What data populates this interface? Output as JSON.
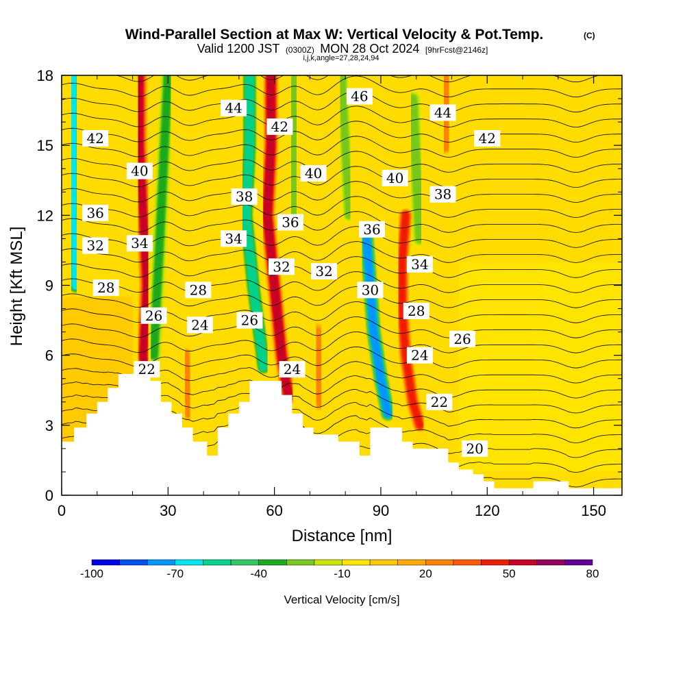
{
  "chart_data": {
    "type": "heatmap",
    "title": "Wind-Parallel Section at Max W: Vertical Velocity & Pot.Temp.",
    "title_mark": "(C)",
    "subtitle": {
      "valid": "Valid 1200 JST",
      "utc": "(0300Z)",
      "date": "MON 28 Oct 2024",
      "fcst": "[9hrFcst@2146z]",
      "ijk": "i,j,k,angle=27,28,24,94"
    },
    "xlabel": "Distance [nm]",
    "ylabel": "Height [Kft MSL]",
    "xlim": [
      0,
      158
    ],
    "ylim": [
      0,
      18
    ],
    "xticks": [
      "0",
      "30",
      "60",
      "90",
      "120",
      "150"
    ],
    "yticks": [
      "0",
      "3",
      "6",
      "9",
      "12",
      "15",
      "18"
    ],
    "xtick_values": [
      0,
      30,
      60,
      90,
      120,
      150
    ],
    "ytick_values": [
      0,
      3,
      6,
      9,
      12,
      15,
      18
    ],
    "colorbar": {
      "label": "Vertical Velocity [cm/s]",
      "tick_labels": [
        "-100",
        "-70",
        "-40",
        "-10",
        "20",
        "50",
        "80"
      ],
      "tick_values": [
        -100,
        -70,
        -40,
        -10,
        20,
        50,
        80
      ],
      "levels": [
        -100,
        -90,
        -80,
        -70,
        -60,
        -50,
        -40,
        -30,
        -20,
        -10,
        0,
        10,
        20,
        30,
        40,
        50,
        60,
        70,
        80
      ],
      "colors": [
        "#0000e6",
        "#0050f0",
        "#0096ff",
        "#00e6f0",
        "#00d28c",
        "#32c864",
        "#1eaa1e",
        "#78c81e",
        "#c8e600",
        "#ffe600",
        "#ffc800",
        "#ffaa00",
        "#ff8200",
        "#ff5a00",
        "#f01e00",
        "#c80028",
        "#96005a",
        "#640096"
      ]
    },
    "terrain": [
      [
        0,
        2.3
      ],
      [
        3.5,
        2.3
      ],
      [
        3.5,
        2.9
      ],
      [
        7,
        2.9
      ],
      [
        7,
        3.5
      ],
      [
        10,
        3.5
      ],
      [
        10,
        4.0
      ],
      [
        13,
        4.0
      ],
      [
        13,
        4.6
      ],
      [
        16,
        4.6
      ],
      [
        16,
        5.2
      ],
      [
        25,
        5.2
      ],
      [
        25,
        4.9
      ],
      [
        28,
        4.9
      ],
      [
        28,
        4.0
      ],
      [
        31,
        4.0
      ],
      [
        31,
        3.5
      ],
      [
        34,
        3.5
      ],
      [
        34,
        2.9
      ],
      [
        37,
        2.9
      ],
      [
        37,
        2.3
      ],
      [
        41,
        2.3
      ],
      [
        41,
        1.7
      ],
      [
        44,
        1.7
      ],
      [
        44,
        2.9
      ],
      [
        47,
        2.9
      ],
      [
        47,
        3.5
      ],
      [
        50,
        3.5
      ],
      [
        50,
        4.0
      ],
      [
        53,
        4.0
      ],
      [
        53,
        4.9
      ],
      [
        62,
        4.9
      ],
      [
        62,
        4.3
      ],
      [
        65,
        4.3
      ],
      [
        65,
        3.5
      ],
      [
        68,
        3.5
      ],
      [
        68,
        2.9
      ],
      [
        71,
        2.9
      ],
      [
        71,
        2.6
      ],
      [
        78,
        2.6
      ],
      [
        78,
        2.3
      ],
      [
        84,
        2.3
      ],
      [
        84,
        1.7
      ],
      [
        87,
        1.7
      ],
      [
        87,
        2.9
      ],
      [
        96,
        2.9
      ],
      [
        96,
        2.3
      ],
      [
        99,
        2.3
      ],
      [
        99,
        2.0
      ],
      [
        109,
        2.0
      ],
      [
        109,
        1.4
      ],
      [
        112,
        1.4
      ],
      [
        112,
        1.1
      ],
      [
        116,
        1.1
      ],
      [
        116,
        0.9
      ],
      [
        119,
        0.9
      ],
      [
        119,
        0.6
      ],
      [
        122,
        0.6
      ],
      [
        122,
        0.3
      ],
      [
        133,
        0.3
      ],
      [
        133,
        0.6
      ],
      [
        143,
        0.6
      ],
      [
        143,
        0.3
      ],
      [
        158,
        0.3
      ]
    ],
    "updrafts": [
      {
        "x": [
          22,
          22,
          23,
          24,
          23,
          24
        ],
        "y": [
          18,
          15,
          12,
          9,
          6,
          4.5
        ],
        "w": 2.5,
        "v": 50
      },
      {
        "x": [
          59,
          59,
          58,
          60,
          62,
          64
        ],
        "y": [
          18,
          15,
          12,
          9,
          6,
          4.2
        ],
        "w": 2.5,
        "v": 55
      },
      {
        "x": [
          97,
          96,
          96,
          97,
          99,
          101
        ],
        "y": [
          12,
          10,
          8,
          6,
          4,
          3
        ],
        "w": 2.2,
        "v": 45
      },
      {
        "x": [
          145,
          145
        ],
        "y": [
          18,
          16
        ],
        "w": 4,
        "v": 28
      },
      {
        "x": [
          109,
          108
        ],
        "y": [
          18,
          15
        ],
        "w": 3,
        "v": 28
      },
      {
        "x": [
          72,
          73
        ],
        "y": [
          7,
          4
        ],
        "w": 3,
        "v": 25
      },
      {
        "x": [
          35,
          36
        ],
        "y": [
          6,
          3.5
        ],
        "w": 2.5,
        "v": 22
      }
    ],
    "downdrafts": [
      {
        "x": [
          3,
          3,
          3,
          4,
          4
        ],
        "y": [
          18,
          15,
          12,
          10.5,
          9
        ],
        "w": 2.6,
        "v": -70
      },
      {
        "x": [
          30,
          29,
          28,
          27,
          26
        ],
        "y": [
          18,
          15,
          12,
          9,
          6
        ],
        "w": 2.5,
        "v": -35
      },
      {
        "x": [
          53,
          53,
          52,
          54,
          57
        ],
        "y": [
          18,
          15,
          12,
          9,
          5.5
        ],
        "w": 2.5,
        "v": -60
      },
      {
        "x": [
          66,
          65,
          65
        ],
        "y": [
          18,
          15,
          12
        ],
        "w": 2.5,
        "v": -30
      },
      {
        "x": [
          86,
          87,
          88,
          90,
          92
        ],
        "y": [
          11,
          9,
          7,
          5,
          3.5
        ],
        "w": 2.5,
        "v": -75
      },
      {
        "x": [
          79,
          80,
          81
        ],
        "y": [
          18,
          15,
          12
        ],
        "w": 2.5,
        "v": -25
      },
      {
        "x": [
          99,
          100,
          101
        ],
        "y": [
          17,
          14,
          11
        ],
        "w": 3,
        "v": -25
      },
      {
        "x": [
          83,
          83
        ],
        "y": [
          6,
          3
        ],
        "w": 2.5,
        "v": -40
      }
    ],
    "contour_labels": [
      {
        "text": "42",
        "x": 9.5,
        "y": 15.3
      },
      {
        "text": "36",
        "x": 9.5,
        "y": 12.1
      },
      {
        "text": "32",
        "x": 9.5,
        "y": 10.7
      },
      {
        "text": "28",
        "x": 12.5,
        "y": 8.9
      },
      {
        "text": "40",
        "x": 22,
        "y": 13.9
      },
      {
        "text": "34",
        "x": 22,
        "y": 10.8
      },
      {
        "text": "26",
        "x": 26,
        "y": 7.7
      },
      {
        "text": "22",
        "x": 24,
        "y": 5.4
      },
      {
        "text": "44",
        "x": 48.5,
        "y": 16.6
      },
      {
        "text": "38",
        "x": 51.5,
        "y": 12.8
      },
      {
        "text": "34",
        "x": 48.5,
        "y": 11.0
      },
      {
        "text": "28",
        "x": 38.5,
        "y": 8.8
      },
      {
        "text": "24",
        "x": 39,
        "y": 7.3
      },
      {
        "text": "26",
        "x": 53,
        "y": 7.5
      },
      {
        "text": "42",
        "x": 61.5,
        "y": 15.8
      },
      {
        "text": "36",
        "x": 64.5,
        "y": 11.7
      },
      {
        "text": "32",
        "x": 62,
        "y": 9.8
      },
      {
        "text": "24",
        "x": 65,
        "y": 5.4
      },
      {
        "text": "40",
        "x": 71,
        "y": 13.8
      },
      {
        "text": "32",
        "x": 74,
        "y": 9.6
      },
      {
        "text": "46",
        "x": 84,
        "y": 17.1
      },
      {
        "text": "36",
        "x": 87.5,
        "y": 11.4
      },
      {
        "text": "30",
        "x": 87,
        "y": 8.8
      },
      {
        "text": "40",
        "x": 94,
        "y": 13.6
      },
      {
        "text": "34",
        "x": 101,
        "y": 9.9
      },
      {
        "text": "28",
        "x": 100,
        "y": 7.9
      },
      {
        "text": "24",
        "x": 101,
        "y": 6.0
      },
      {
        "text": "44",
        "x": 107.5,
        "y": 16.4
      },
      {
        "text": "38",
        "x": 107.5,
        "y": 12.9
      },
      {
        "text": "42",
        "x": 120,
        "y": 15.3
      },
      {
        "text": "26",
        "x": 113,
        "y": 6.7
      },
      {
        "text": "22",
        "x": 106.5,
        "y": 4.0
      },
      {
        "text": "20",
        "x": 116.5,
        "y": 2.0
      }
    ],
    "contour_spacing_per_kft": 0.75,
    "contour_min": 15,
    "contour_max": 48,
    "contour_step": 1
  }
}
